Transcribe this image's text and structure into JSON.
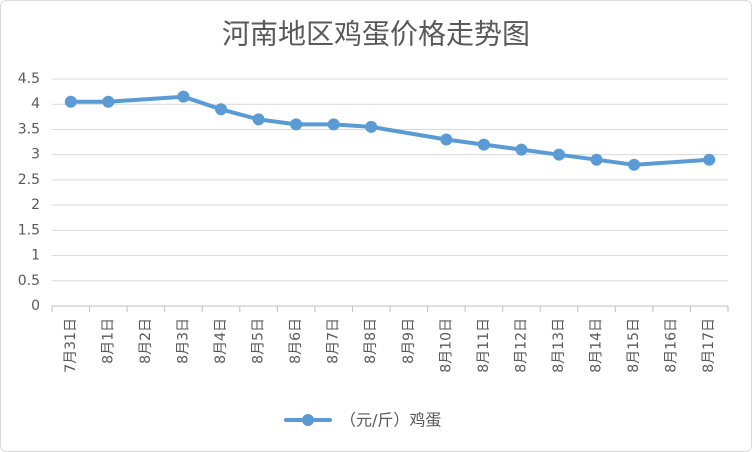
{
  "chart_data": {
    "type": "line",
    "title": "河南地区鸡蛋价格走势图",
    "categories": [
      "7月31日",
      "8月1日",
      "8月2日",
      "8月3日",
      "8月4日",
      "8月5日",
      "8月6日",
      "8月7日",
      "8月8日",
      "8月9日",
      "8月10日",
      "8月11日",
      "8月12日",
      "8月13日",
      "8月14日",
      "8月15日",
      "8月16日",
      "8月17日"
    ],
    "series": [
      {
        "name": "（元/斤）鸡蛋",
        "values": [
          4.05,
          4.05,
          null,
          4.15,
          3.9,
          3.7,
          3.6,
          3.6,
          3.55,
          null,
          3.3,
          3.2,
          3.1,
          3.0,
          2.9,
          2.8,
          null,
          2.9
        ],
        "color": "#5B9BD5"
      }
    ],
    "ylim": [
      0,
      4.5
    ],
    "yticks": [
      0,
      0.5,
      1,
      1.5,
      2,
      2.5,
      3,
      3.5,
      4,
      4.5
    ],
    "grid": true,
    "legend": "bottom"
  },
  "colors": {
    "text": "#595959",
    "gridline": "#D9D9D9",
    "axis": "#BFBFBF",
    "border": "#D9D9D9",
    "background": "#FFFFFF"
  }
}
